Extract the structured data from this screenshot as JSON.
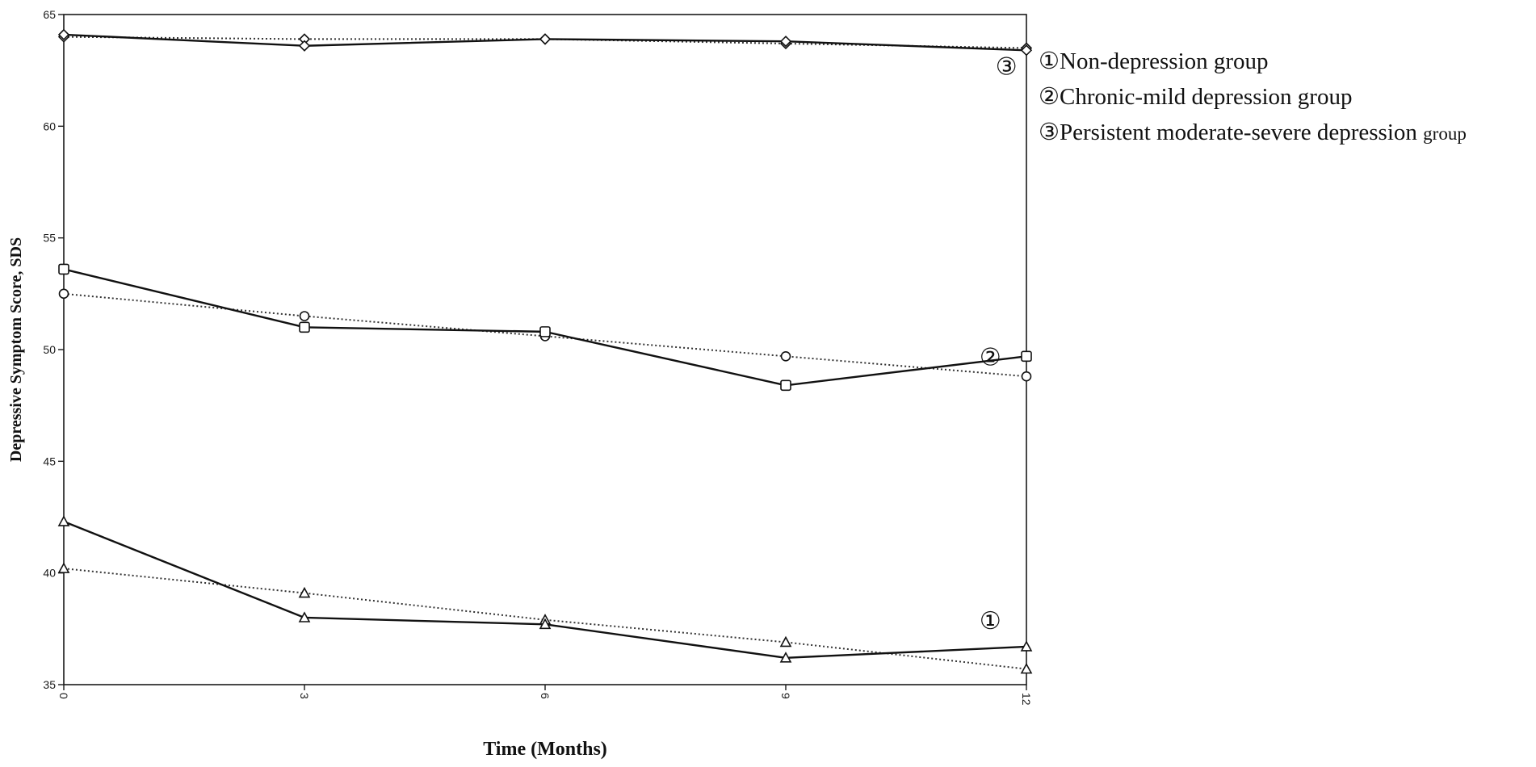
{
  "chart_data": {
    "type": "line",
    "xlabel": "Time (Months)",
    "ylabel": "Depressive Symptom Score, SDS",
    "x": [
      0,
      3,
      6,
      9,
      12
    ],
    "x_tick_labels": [
      "0",
      "3",
      "6",
      "9",
      "12"
    ],
    "ylim": [
      35,
      65
    ],
    "y_ticks": [
      35,
      40,
      45,
      50,
      55,
      60,
      65
    ],
    "y_tick_labels": [
      "35",
      "40",
      "45",
      "50",
      "55",
      "60",
      "65"
    ],
    "grid": false,
    "legend_position": "right",
    "series": [
      {
        "group": "Non-depression group",
        "curve_label": "①",
        "marker": "triangle",
        "observed": [
          42.3,
          38.0,
          37.7,
          36.2,
          36.7
        ],
        "estimated": [
          40.2,
          39.1,
          37.9,
          36.9,
          35.7
        ]
      },
      {
        "group": "Chronic-mild depression group",
        "curve_label": "②",
        "marker": "square-circle",
        "observed": [
          53.6,
          51.0,
          50.8,
          48.4,
          49.7
        ],
        "estimated": [
          52.5,
          51.5,
          50.6,
          49.7,
          48.8
        ]
      },
      {
        "group": "Persistent moderate-severe depression group",
        "curve_label": "③",
        "marker": "diamond",
        "observed": [
          64.1,
          63.6,
          63.9,
          63.8,
          63.4
        ],
        "estimated": [
          64.0,
          63.9,
          63.9,
          63.7,
          63.5
        ]
      }
    ]
  },
  "legend": {
    "items": [
      {
        "symbol": "①",
        "text": "Non-depression group",
        "suffix": ""
      },
      {
        "symbol": "②",
        "text": "Chronic-mild depression group",
        "suffix": ""
      },
      {
        "symbol": "③",
        "text": "Persistent moderate-severe depression ",
        "suffix": "group"
      }
    ]
  },
  "colors": {
    "line": "#111111",
    "background": "#ffffff"
  }
}
